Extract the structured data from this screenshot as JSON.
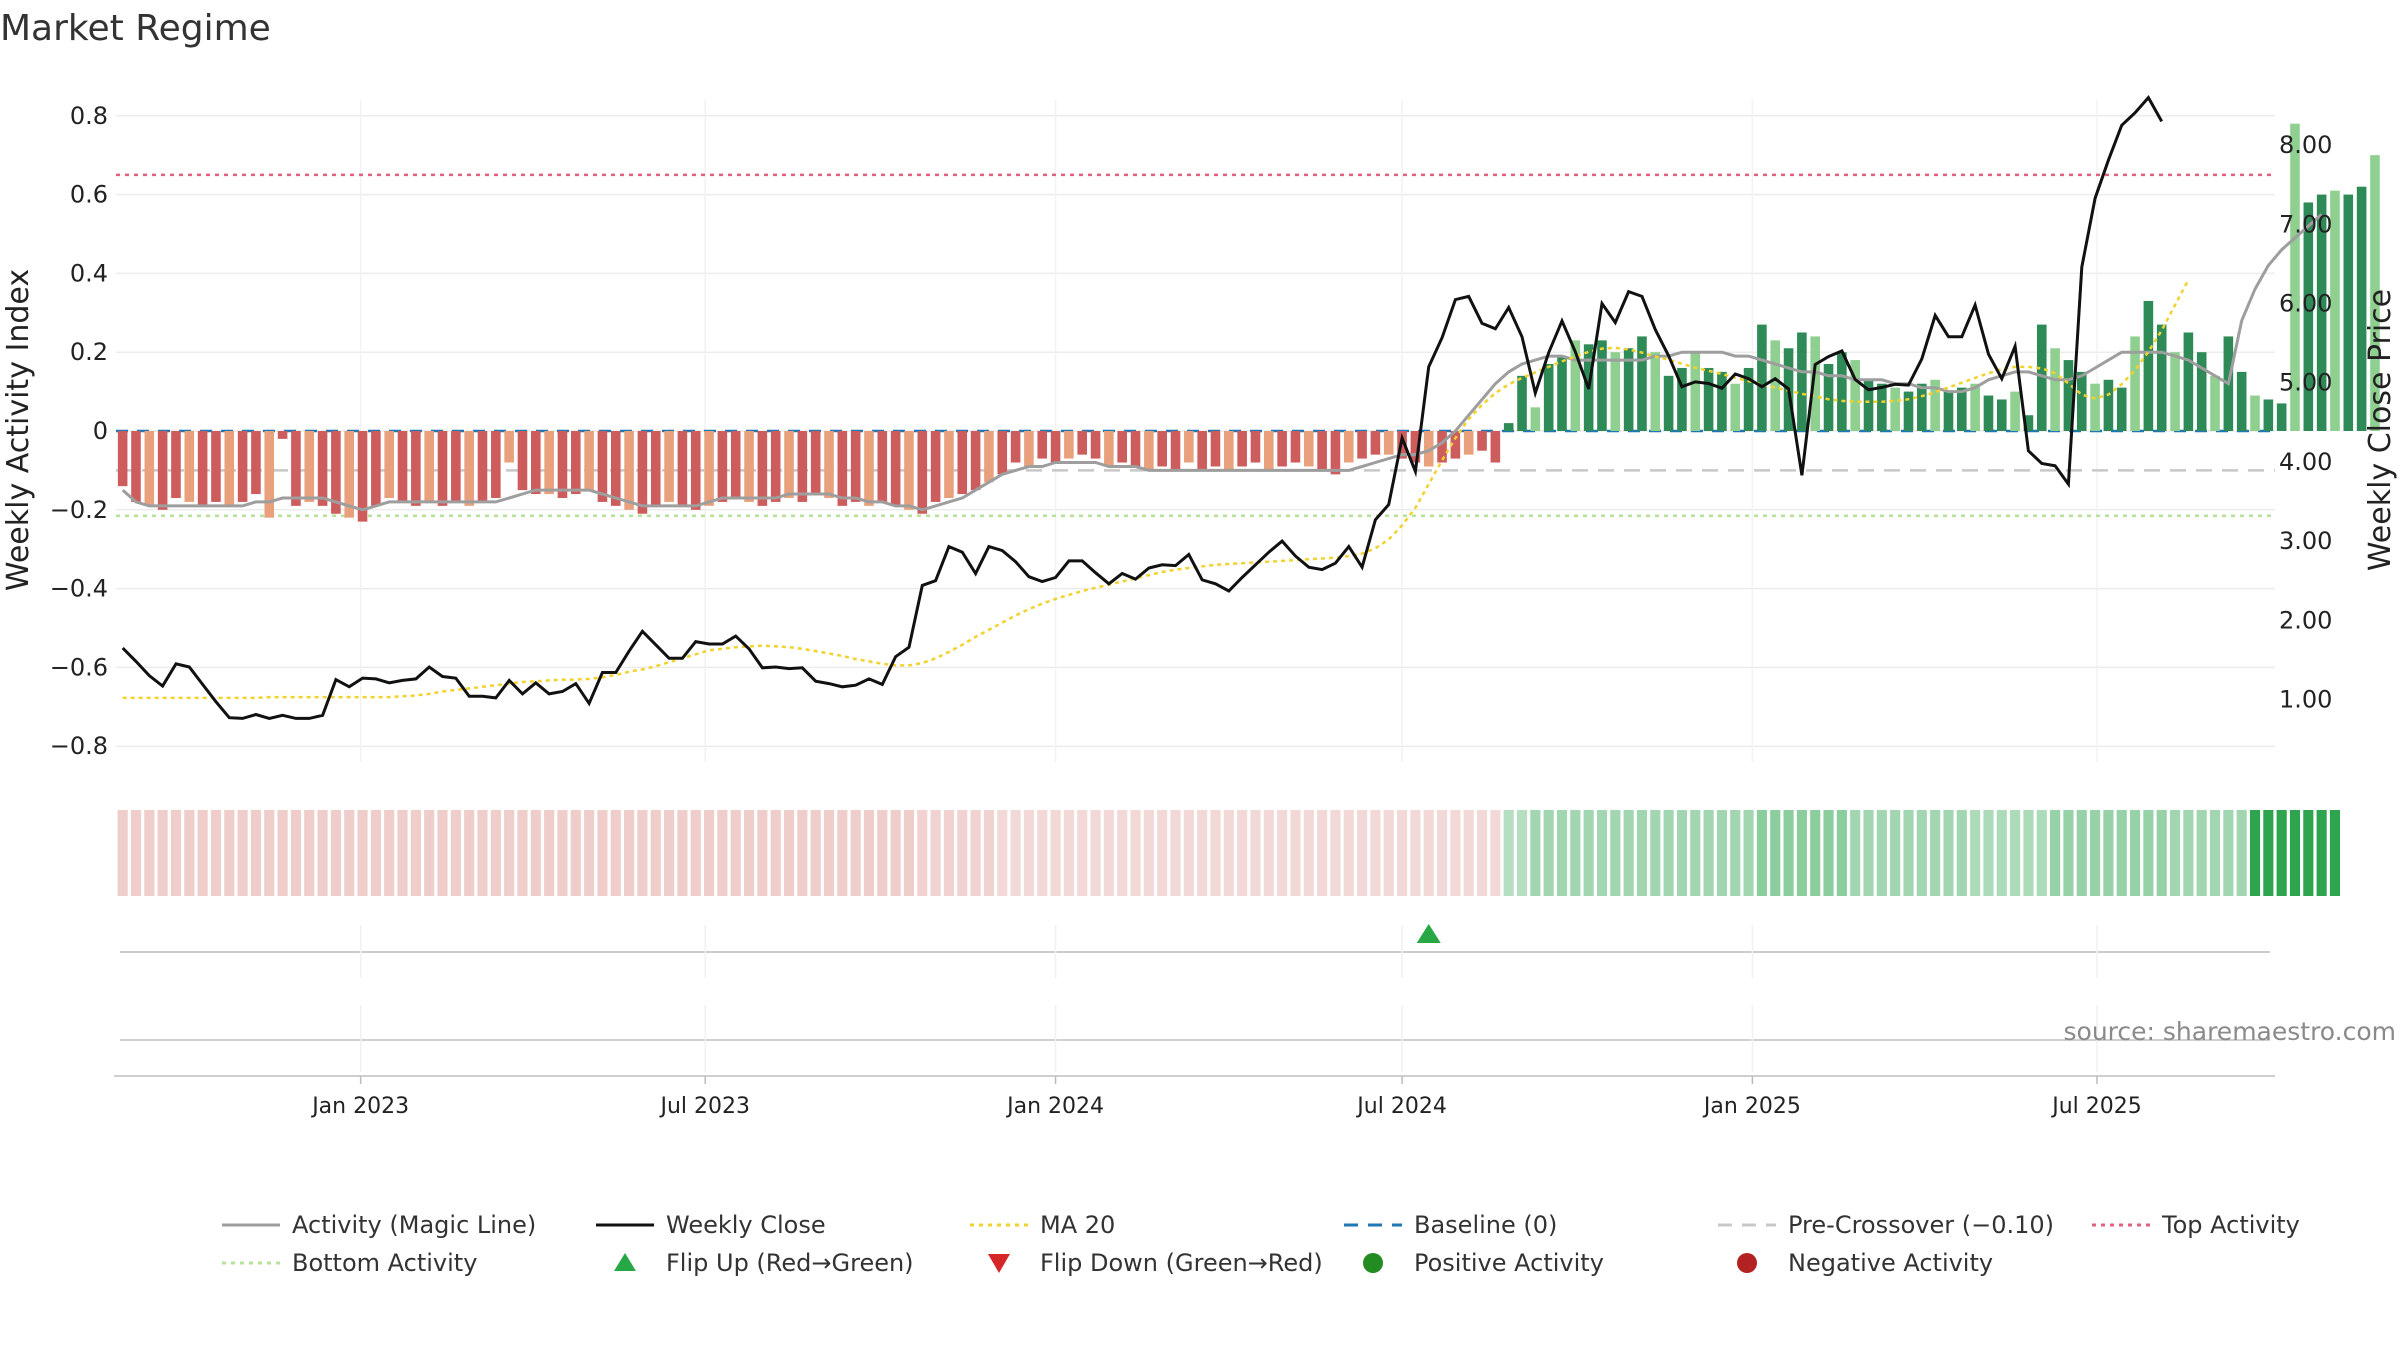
{
  "chart_data": {
    "type": "bar",
    "title": "Market Regime",
    "y_left_label": "Weekly Activity Index",
    "y_right_label": "Weekly Close Price",
    "y_left_ticks": [
      "0.8",
      "0.6",
      "0.4",
      "0.2",
      "0",
      "−0.2",
      "−0.4",
      "−0.6",
      "−0.8"
    ],
    "y_left_tick_values": [
      0.8,
      0.6,
      0.4,
      0.2,
      0,
      -0.2,
      -0.4,
      -0.6,
      -0.8
    ],
    "y_right_ticks": [
      "8.00",
      "7.00",
      "6.00",
      "5.00",
      "4.00",
      "3.00",
      "2.00",
      "1.00"
    ],
    "y_right_tick_values": [
      8,
      7,
      6,
      5,
      4,
      3,
      2,
      1
    ],
    "ylim_left": [
      -0.84,
      0.84
    ],
    "ylim_right": [
      0.21,
      8.57
    ],
    "x_ticks": [
      "Jan 2023",
      "Jul 2023",
      "Jan 2024",
      "Jul 2024",
      "Jan 2025",
      "Jul 2025"
    ],
    "x_tick_dates": [
      "2023-01-01",
      "2023-07-01",
      "2024-01-01",
      "2024-07-01",
      "2025-01-01",
      "2025-07-01"
    ],
    "first_week": "2022-08-29",
    "weeks": 162,
    "activity": [
      -0.14,
      -0.18,
      -0.19,
      -0.2,
      -0.17,
      -0.18,
      -0.19,
      -0.18,
      -0.19,
      -0.18,
      -0.16,
      -0.22,
      -0.02,
      -0.19,
      -0.18,
      -0.19,
      -0.21,
      -0.22,
      -0.23,
      -0.19,
      -0.17,
      -0.18,
      -0.19,
      -0.18,
      -0.19,
      -0.18,
      -0.19,
      -0.18,
      -0.17,
      -0.08,
      -0.15,
      -0.16,
      -0.16,
      -0.17,
      -0.16,
      -0.15,
      -0.18,
      -0.19,
      -0.2,
      -0.21,
      -0.19,
      -0.18,
      -0.19,
      -0.2,
      -0.19,
      -0.18,
      -0.17,
      -0.18,
      -0.19,
      -0.18,
      -0.17,
      -0.18,
      -0.16,
      -0.17,
      -0.19,
      -0.18,
      -0.19,
      -0.18,
      -0.19,
      -0.2,
      -0.21,
      -0.18,
      -0.17,
      -0.16,
      -0.15,
      -0.13,
      -0.11,
      -0.08,
      -0.09,
      -0.07,
      -0.08,
      -0.07,
      -0.06,
      -0.07,
      -0.09,
      -0.08,
      -0.09,
      -0.1,
      -0.09,
      -0.1,
      -0.08,
      -0.1,
      -0.09,
      -0.1,
      -0.09,
      -0.08,
      -0.1,
      -0.09,
      -0.08,
      -0.09,
      -0.1,
      -0.11,
      -0.08,
      -0.07,
      -0.06,
      -0.06,
      -0.07,
      -0.08,
      -0.09,
      -0.08,
      -0.07,
      -0.06,
      -0.05,
      -0.08,
      0.02,
      0.14,
      0.06,
      0.17,
      0.19,
      0.23,
      0.22,
      0.23,
      0.2,
      0.21,
      0.24,
      0.2,
      0.14,
      0.16,
      0.2,
      0.16,
      0.15,
      0.12,
      0.16,
      0.27,
      0.23,
      0.21,
      0.25,
      0.24,
      0.17,
      0.2,
      0.18,
      0.13,
      0.12,
      0.11,
      0.1,
      0.12,
      0.13,
      0.1,
      0.11,
      0.12,
      0.09,
      0.08,
      0.1,
      0.04,
      0.27,
      0.21,
      0.18,
      0.15,
      0.12,
      0.13,
      0.11,
      0.24,
      0.33,
      0.27,
      0.2,
      0.25,
      0.2,
      0.14,
      0.24,
      0.15,
      0.09,
      0.08,
      0.07,
      0.78,
      0.58,
      0.6,
      0.61,
      0.6,
      0.62,
      0.7
    ],
    "close": [
      1.65,
      1.48,
      1.3,
      1.17,
      1.45,
      1.41,
      1.19,
      0.97,
      0.77,
      0.76,
      0.81,
      0.76,
      0.8,
      0.76,
      0.76,
      0.8,
      1.25,
      1.16,
      1.27,
      1.26,
      1.21,
      1.24,
      1.26,
      1.41,
      1.29,
      1.27,
      1.04,
      1.04,
      1.02,
      1.24,
      1.07,
      1.21,
      1.07,
      1.1,
      1.2,
      0.95,
      1.34,
      1.34,
      1.61,
      1.86,
      1.69,
      1.52,
      1.52,
      1.73,
      1.7,
      1.7,
      1.8,
      1.64,
      1.4,
      1.41,
      1.39,
      1.4,
      1.23,
      1.2,
      1.16,
      1.18,
      1.26,
      1.19,
      1.54,
      1.66,
      2.44,
      2.5,
      2.93,
      2.86,
      2.59,
      2.93,
      2.88,
      2.74,
      2.55,
      2.49,
      2.54,
      2.75,
      2.75,
      2.6,
      2.46,
      2.59,
      2.52,
      2.66,
      2.7,
      2.69,
      2.83,
      2.51,
      2.46,
      2.37,
      2.54,
      2.7,
      2.86,
      3.0,
      2.81,
      2.67,
      2.64,
      2.72,
      2.93,
      2.67,
      3.27,
      3.46,
      4.3,
      3.88,
      5.2,
      5.57,
      6.05,
      6.09,
      5.75,
      5.68,
      5.95,
      5.58,
      4.87,
      5.38,
      5.78,
      5.39,
      4.92,
      6.0,
      5.76,
      6.15,
      6.09,
      5.67,
      5.34,
      4.95,
      5.01,
      4.99,
      4.93,
      5.11,
      5.05,
      4.95,
      5.05,
      4.92,
      3.83,
      5.23,
      5.33,
      5.4,
      5.04,
      4.91,
      4.94,
      4.98,
      4.97,
      5.3,
      5.85,
      5.58,
      5.58,
      5.98,
      5.36,
      5.05,
      5.46,
      4.14,
      3.98,
      3.95,
      3.72,
      6.46,
      7.33,
      7.81,
      8.25,
      8.41,
      8.6,
      8.3
    ],
    "ma20": [
      1.02,
      1.02,
      1.02,
      1.02,
      1.02,
      1.02,
      1.02,
      1.02,
      1.02,
      1.02,
      1.02,
      1.03,
      1.03,
      1.03,
      1.03,
      1.03,
      1.03,
      1.03,
      1.03,
      1.03,
      1.03,
      1.04,
      1.05,
      1.07,
      1.1,
      1.12,
      1.14,
      1.16,
      1.18,
      1.2,
      1.22,
      1.23,
      1.24,
      1.25,
      1.25,
      1.26,
      1.28,
      1.31,
      1.35,
      1.38,
      1.42,
      1.47,
      1.52,
      1.57,
      1.62,
      1.64,
      1.66,
      1.67,
      1.68,
      1.67,
      1.66,
      1.64,
      1.61,
      1.58,
      1.55,
      1.51,
      1.48,
      1.45,
      1.43,
      1.43,
      1.46,
      1.52,
      1.6,
      1.69,
      1.79,
      1.88,
      1.97,
      2.06,
      2.14,
      2.21,
      2.27,
      2.32,
      2.37,
      2.41,
      2.45,
      2.49,
      2.53,
      2.57,
      2.61,
      2.64,
      2.66,
      2.68,
      2.7,
      2.71,
      2.72,
      2.73,
      2.74,
      2.75,
      2.76,
      2.77,
      2.78,
      2.79,
      2.81,
      2.84,
      2.91,
      3.02,
      3.2,
      3.42,
      3.72,
      4.02,
      4.3,
      4.54,
      4.72,
      4.87,
      4.98,
      5.06,
      5.13,
      5.2,
      5.27,
      5.33,
      5.39,
      5.43,
      5.44,
      5.42,
      5.38,
      5.33,
      5.29,
      5.24,
      5.19,
      5.15,
      5.11,
      5.06,
      5.02,
      4.98,
      4.94,
      4.9,
      4.86,
      4.83,
      4.79,
      4.77,
      4.76,
      4.76,
      4.76,
      4.77,
      4.79,
      4.83,
      4.88,
      4.94,
      5.0,
      5.06,
      5.12,
      5.17,
      5.2,
      5.2,
      5.18,
      5.12,
      4.99,
      4.85,
      4.8,
      4.85,
      4.98,
      5.16,
      5.39,
      5.66,
      5.98,
      6.3
    ],
    "magic_line": [
      -0.15,
      -0.18,
      -0.19,
      -0.19,
      -0.19,
      -0.19,
      -0.19,
      -0.19,
      -0.19,
      -0.19,
      -0.18,
      -0.18,
      -0.17,
      -0.17,
      -0.17,
      -0.17,
      -0.18,
      -0.19,
      -0.2,
      -0.19,
      -0.18,
      -0.18,
      -0.18,
      -0.18,
      -0.18,
      -0.18,
      -0.18,
      -0.18,
      -0.18,
      -0.17,
      -0.16,
      -0.15,
      -0.15,
      -0.15,
      -0.15,
      -0.15,
      -0.16,
      -0.17,
      -0.18,
      -0.19,
      -0.19,
      -0.19,
      -0.19,
      -0.19,
      -0.18,
      -0.17,
      -0.17,
      -0.17,
      -0.17,
      -0.17,
      -0.16,
      -0.16,
      -0.16,
      -0.16,
      -0.17,
      -0.17,
      -0.18,
      -0.18,
      -0.19,
      -0.19,
      -0.2,
      -0.19,
      -0.18,
      -0.17,
      -0.15,
      -0.13,
      -0.11,
      -0.1,
      -0.09,
      -0.09,
      -0.08,
      -0.08,
      -0.08,
      -0.08,
      -0.09,
      -0.09,
      -0.09,
      -0.1,
      -0.1,
      -0.1,
      -0.1,
      -0.1,
      -0.1,
      -0.1,
      -0.1,
      -0.1,
      -0.1,
      -0.1,
      -0.1,
      -0.1,
      -0.1,
      -0.1,
      -0.1,
      -0.09,
      -0.08,
      -0.07,
      -0.06,
      -0.06,
      -0.05,
      -0.03,
      0.0,
      0.04,
      0.08,
      0.12,
      0.15,
      0.17,
      0.18,
      0.19,
      0.19,
      0.18,
      0.18,
      0.18,
      0.18,
      0.18,
      0.18,
      0.19,
      0.19,
      0.2,
      0.2,
      0.2,
      0.2,
      0.19,
      0.19,
      0.18,
      0.17,
      0.16,
      0.15,
      0.15,
      0.14,
      0.14,
      0.13,
      0.13,
      0.13,
      0.12,
      0.12,
      0.11,
      0.11,
      0.1,
      0.1,
      0.11,
      0.13,
      0.14,
      0.15,
      0.15,
      0.14,
      0.13,
      0.13,
      0.14,
      0.16,
      0.18,
      0.2,
      0.2,
      0.2,
      0.2,
      0.19,
      0.18,
      0.16,
      0.14,
      0.12,
      0.28,
      0.36,
      0.42,
      0.46,
      0.49,
      0.52,
      0.55
    ],
    "regime_strength": [
      0.45,
      0.45,
      0.45,
      0.45,
      0.45,
      0.45,
      0.45,
      0.45,
      0.45,
      0.45,
      0.45,
      0.45,
      0.45,
      0.45,
      0.45,
      0.45,
      0.45,
      0.45,
      0.45,
      0.45,
      0.45,
      0.45,
      0.45,
      0.45,
      0.45,
      0.45,
      0.45,
      0.45,
      0.45,
      0.45,
      0.45,
      0.45,
      0.45,
      0.45,
      0.45,
      0.45,
      0.45,
      0.45,
      0.45,
      0.45,
      0.45,
      0.45,
      0.45,
      0.45,
      0.45,
      0.45,
      0.45,
      0.45,
      0.45,
      0.45,
      0.45,
      0.45,
      0.45,
      0.45,
      0.45,
      0.45,
      0.45,
      0.45,
      0.45,
      0.45,
      0.4,
      0.4,
      0.4,
      0.4,
      0.4,
      0.4,
      0.35,
      0.35,
      0.35,
      0.35,
      0.35,
      0.35,
      0.35,
      0.35,
      0.35,
      0.35,
      0.35,
      0.35,
      0.35,
      0.35,
      0.35,
      0.35,
      0.35,
      0.35,
      0.35,
      0.35,
      0.35,
      0.35,
      0.35,
      0.35,
      0.35,
      0.35,
      0.35,
      0.35,
      0.35,
      0.35,
      0.35,
      0.35,
      0.35,
      0.35,
      0.35,
      0.35,
      0.35,
      0.35,
      0.35,
      0.35,
      0.45,
      0.45,
      0.45,
      0.45,
      0.45,
      0.45,
      0.45,
      0.45,
      0.45,
      0.45,
      0.45,
      0.45,
      0.45,
      0.45,
      0.45,
      0.45,
      0.45,
      0.55,
      0.55,
      0.55,
      0.55,
      0.55,
      0.55,
      0.55,
      0.45,
      0.45,
      0.45,
      0.45,
      0.45,
      0.45,
      0.45,
      0.45,
      0.45,
      0.4,
      0.4,
      0.4,
      0.4,
      0.4,
      0.4,
      0.5,
      0.5,
      0.5,
      0.5,
      0.5,
      0.5,
      0.5,
      0.5,
      0.5,
      0.45,
      0.45,
      0.45,
      0.45,
      0.45,
      0.45,
      1.0,
      1.0,
      1.0,
      1.0,
      1.0,
      1.0,
      1.0
    ],
    "flip_up_weeks": [
      98
    ],
    "flip_down_weeks": [],
    "top_activity": 0.65,
    "bottom_activity": -0.215,
    "baseline": 0,
    "pre_crossover": -0.1,
    "colors": {
      "pos_strong": "#2e8b57",
      "pos_weak": "#8fcf8f",
      "neg_strong": "#cd5c5c",
      "neg_weak": "#e8a17c",
      "magic_line": "#9e9e9e",
      "close": "#111111",
      "ma20": "#f2d22e",
      "baseline": "#1f77b4",
      "pre_crossover": "#c8c8c8",
      "top_activity": "#e0607e",
      "bottom_activity": "#b6e39a",
      "strip_green": "#2ea44f",
      "strip_red": "#d9908c",
      "flip_up": "#28a745",
      "flip_down": "#d62728",
      "negative_dot": "#b22222"
    },
    "legend": [
      {
        "label": "Activity (Magic Line)",
        "style": "solid",
        "color": "#9e9e9e",
        "icon": "line-icon"
      },
      {
        "label": "Weekly Close",
        "style": "solid",
        "color": "#111111",
        "icon": "line-icon"
      },
      {
        "label": "MA 20",
        "style": "dotted",
        "color": "#f2d22e",
        "icon": "line-icon"
      },
      {
        "label": "Baseline (0)",
        "style": "dashed",
        "color": "#1f77b4",
        "icon": "line-icon"
      },
      {
        "label": "Pre-Crossover (−0.10)",
        "style": "dashed",
        "color": "#c8c8c8",
        "icon": "line-icon"
      },
      {
        "label": "Top Activity",
        "style": "dotted",
        "color": "#e0607e",
        "icon": "line-icon"
      },
      {
        "label": "Bottom Activity",
        "style": "dotted",
        "color": "#b6e39a",
        "icon": "line-icon"
      },
      {
        "label": "Flip Up (Red→Green)",
        "style": "triangle-up",
        "color": "#28a745",
        "icon": "triangle-up-icon"
      },
      {
        "label": "Flip Down (Green→Red)",
        "style": "triangle-down",
        "color": "#d62728",
        "icon": "triangle-down-icon"
      },
      {
        "label": "Positive Activity",
        "style": "dot",
        "color": "#228b22",
        "icon": "dot-icon"
      },
      {
        "label": "Negative Activity",
        "style": "dot",
        "color": "#b22222",
        "icon": "dot-icon"
      }
    ],
    "source_text": "source: sharemaestro.com",
    "grid": true,
    "legend_placement": "bottom"
  }
}
